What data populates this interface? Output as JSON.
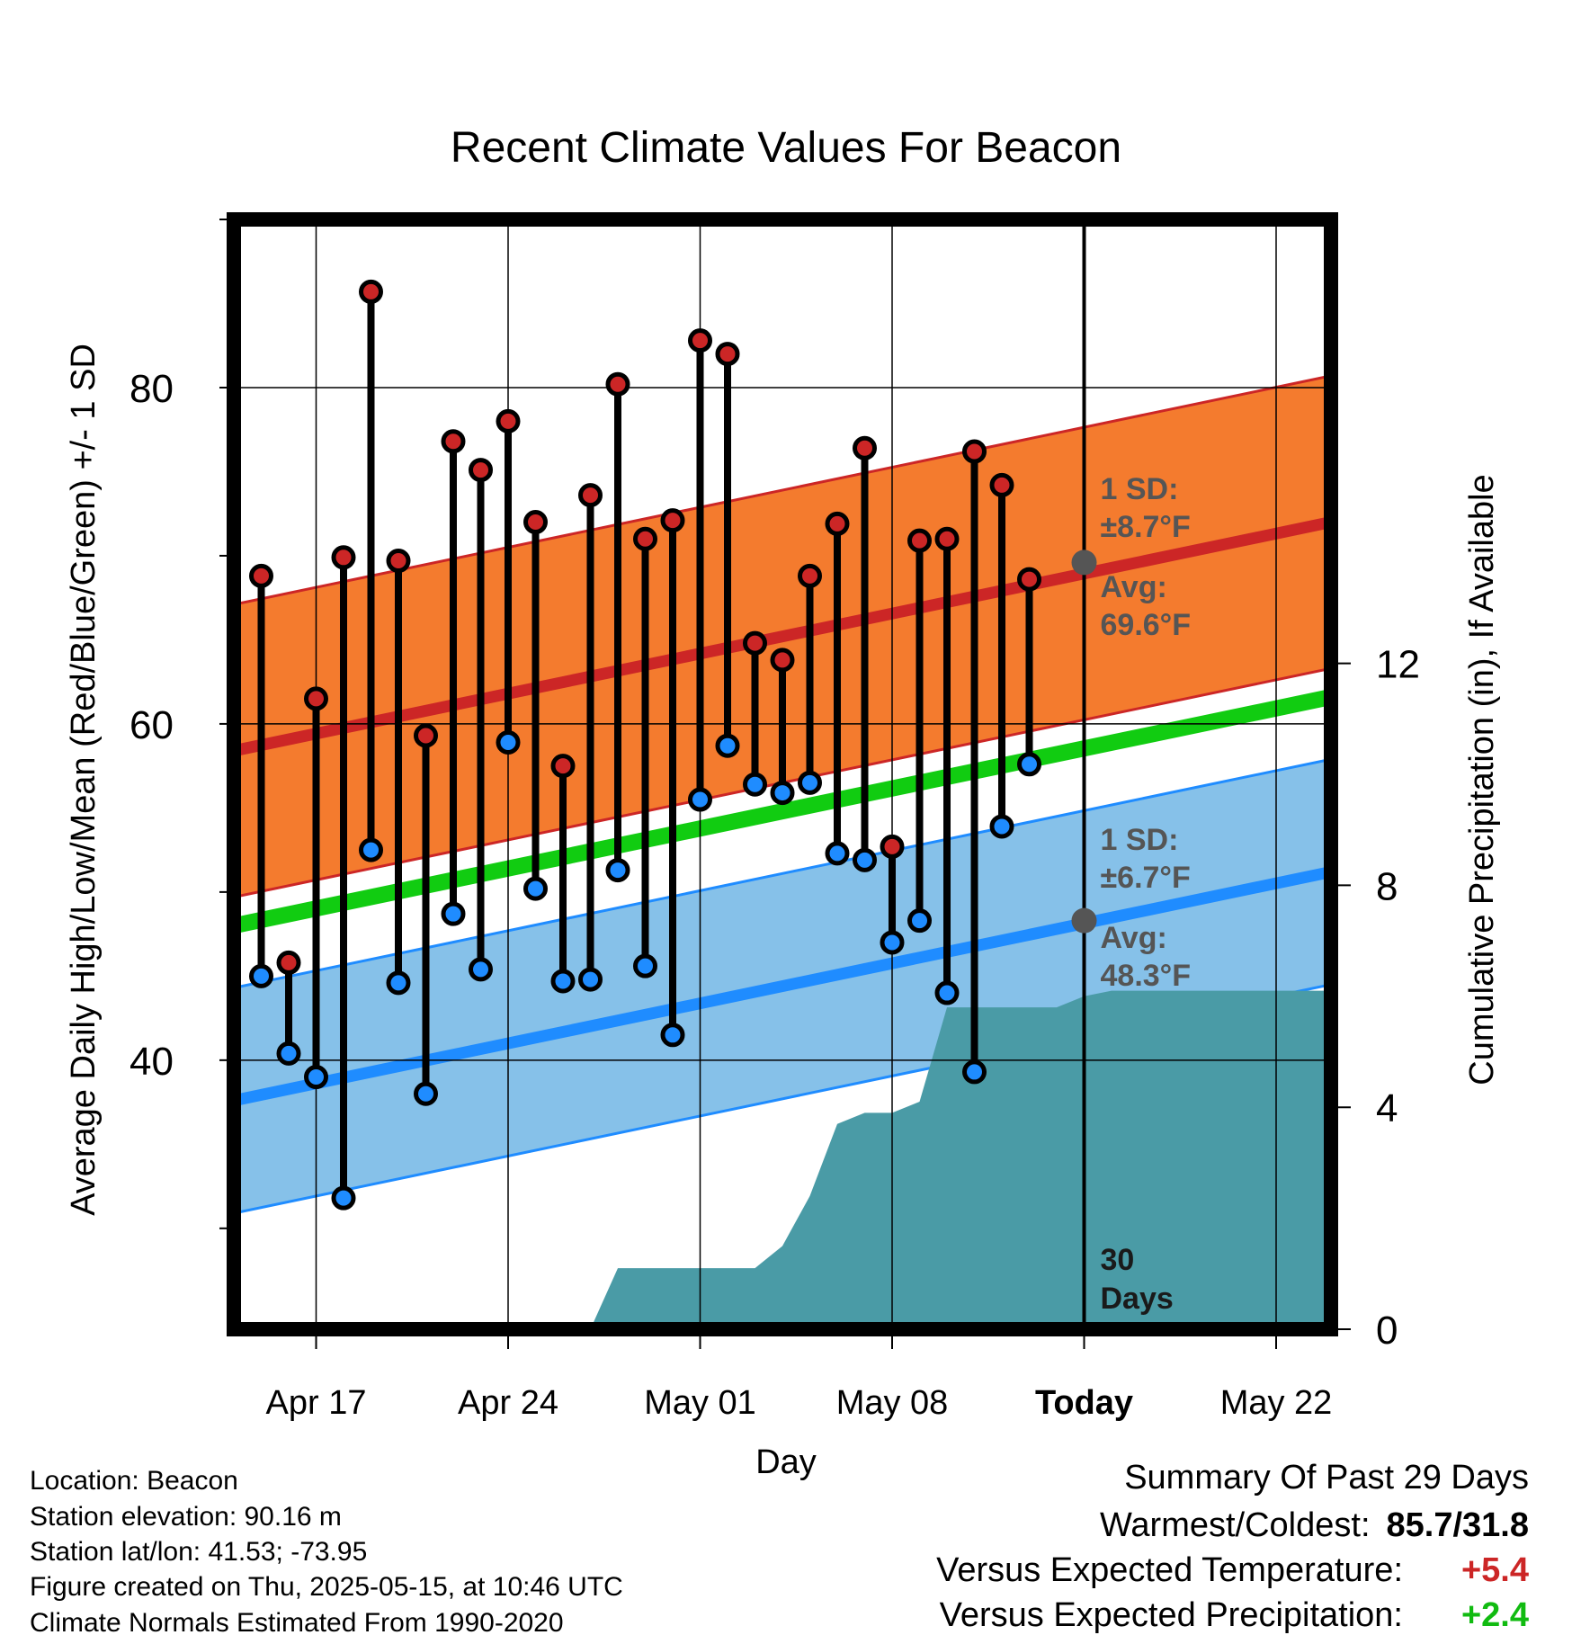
{
  "chart_data": {
    "type": "line",
    "title": "Recent Climate Values For Beacon",
    "xlabel": "Day",
    "ylabel": "Average Daily High/Low/Mean (Red/Blue/Green) +/- 1 SD",
    "y2label": "Cumulative Precipitation (in), If Available",
    "x_ticks": [
      "Apr 17",
      "Apr 24",
      "May 01",
      "May 08",
      "Today",
      "May 22"
    ],
    "xlim_days_from_apr17": [
      -3,
      37
    ],
    "ylim": [
      24,
      90
    ],
    "y_ticks": [
      40,
      60,
      80
    ],
    "y2lim": [
      0,
      20
    ],
    "y2_ticks": [
      0,
      4,
      8,
      12
    ],
    "grid": true,
    "dates": [
      "Apr 15",
      "Apr 16",
      "Apr 17",
      "Apr 18",
      "Apr 19",
      "Apr 20",
      "Apr 21",
      "Apr 22",
      "Apr 23",
      "Apr 24",
      "Apr 25",
      "Apr 26",
      "Apr 27",
      "Apr 28",
      "Apr 29",
      "Apr 30",
      "May 01",
      "May 02",
      "May 03",
      "May 04",
      "May 05",
      "May 06",
      "May 07",
      "May 08",
      "May 09",
      "May 10",
      "May 11",
      "May 12",
      "May 13",
      "May 14"
    ],
    "daily_high": [
      68.8,
      45.8,
      61.5,
      69.9,
      85.7,
      69.7,
      59.3,
      76.8,
      75.1,
      78.0,
      72.0,
      57.5,
      73.6,
      80.2,
      71.0,
      72.1,
      82.8,
      82.0,
      64.8,
      63.8,
      68.8,
      71.9,
      76.4,
      52.7,
      70.9,
      71.0,
      76.2,
      74.2,
      68.6,
      null
    ],
    "daily_low": [
      45.0,
      40.4,
      39.0,
      31.8,
      52.5,
      44.6,
      38.0,
      48.7,
      45.4,
      58.9,
      50.2,
      44.7,
      44.8,
      51.3,
      45.6,
      41.5,
      55.5,
      58.7,
      56.4,
      55.9,
      56.5,
      52.3,
      51.9,
      47.0,
      48.3,
      44.0,
      39.3,
      53.9,
      57.6,
      null
    ],
    "normals": {
      "high_avg": {
        "start": 58.4,
        "end": 72.0,
        "today": 69.6
      },
      "high_sd": 8.7,
      "low_avg": {
        "start": 37.6,
        "end": 51.2,
        "today": 48.3
      },
      "low_sd": 6.7,
      "mean_avg": {
        "start": 48.0,
        "end": 61.6
      }
    },
    "cumulative_precip": {
      "days": [
        10,
        11,
        16,
        17,
        18,
        19,
        20,
        21,
        22,
        23,
        24,
        25,
        26,
        27,
        28,
        29,
        30,
        37
      ],
      "values": [
        0,
        1.1,
        1.1,
        1.5,
        2.4,
        3.7,
        3.9,
        3.9,
        4.1,
        5.8,
        5.8,
        5.8,
        5.8,
        5.8,
        6.0,
        6.1,
        6.1,
        6.1
      ]
    },
    "annotations": {
      "high_sd_label": "1 SD:",
      "high_sd_value": "±8.7°F",
      "high_avg_label": "Avg:",
      "high_avg_value": "69.6°F",
      "low_sd_label": "1 SD:",
      "low_sd_value": "±6.7°F",
      "low_avg_label": "Avg:",
      "low_avg_value": "48.3°F",
      "days_count": "30",
      "days_word": "Days"
    },
    "colors": {
      "high_band": "#f47b2e",
      "high_line": "#cc2626",
      "low_band": "#86c1e9",
      "low_line": "#1f8cff",
      "mean_line": "#11cc11",
      "precip": "#4a9ba6",
      "high_dot": "#cc2626",
      "low_dot": "#1f8cff",
      "avg_dot": "#555555",
      "annotation_text": "#555555"
    }
  },
  "info": {
    "location": "Location: Beacon",
    "elevation": "Station elevation: 90.16 m",
    "latlon": "Station lat/lon: 41.53; -73.95",
    "created": "Figure created on Thu, 2025-05-15, at 10:46 UTC",
    "normals": "Climate Normals Estimated From 1990-2020"
  },
  "summary": {
    "title": "Summary Of Past 29 Days",
    "warm_cold_label": "Warmest/Coldest:",
    "warm_cold_value": "85.7/31.8",
    "temp_label": "Versus Expected Temperature:",
    "temp_value": "+5.4",
    "temp_color": "#cc2626",
    "precip_label": "Versus Expected Precipitation:",
    "precip_value": "+2.4",
    "precip_color": "#11bb11"
  }
}
